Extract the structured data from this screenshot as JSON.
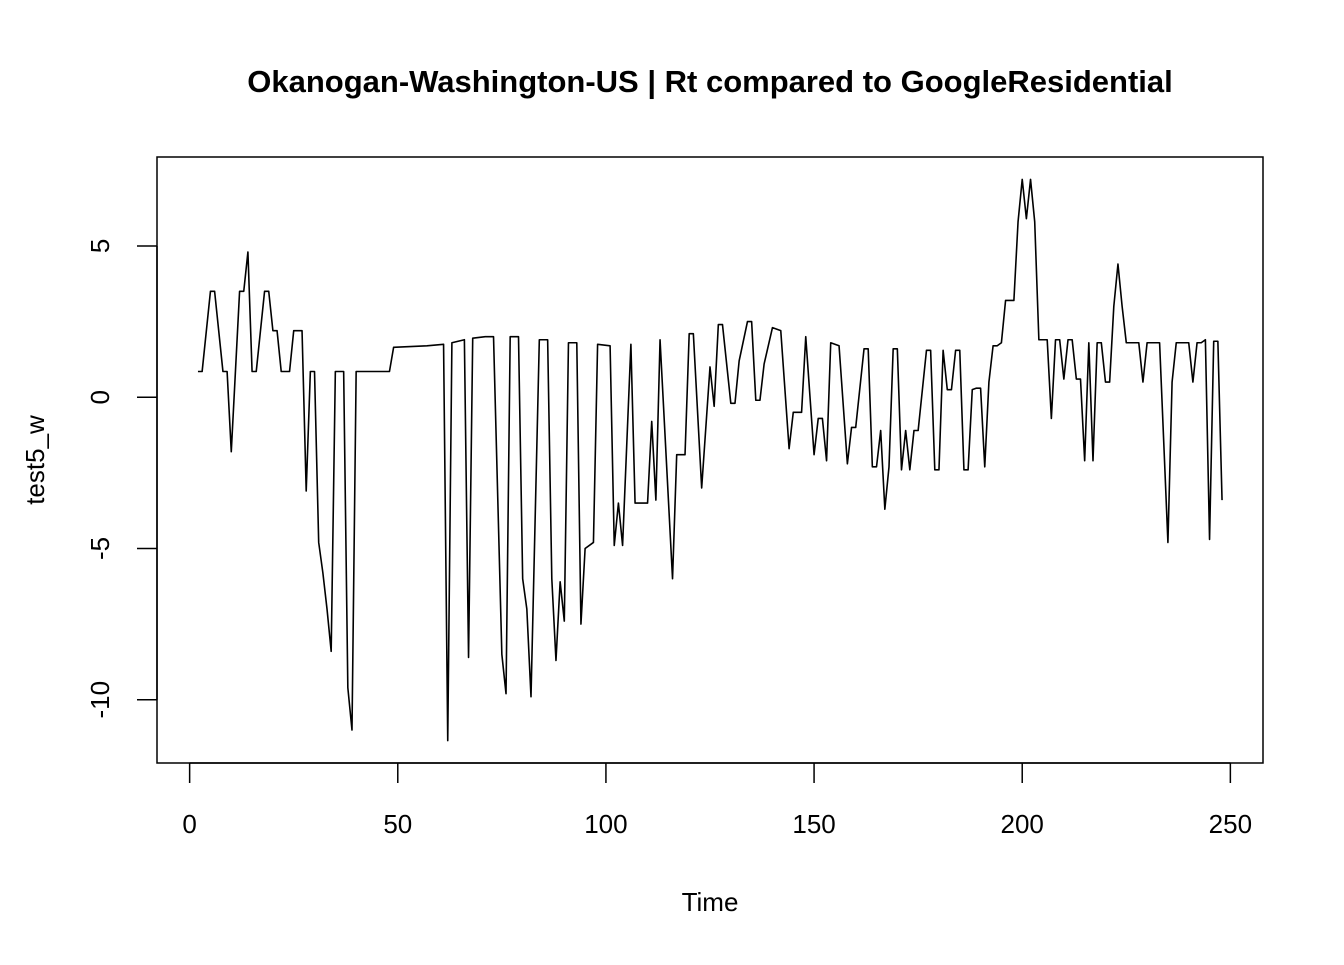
{
  "chart_data": {
    "type": "line",
    "title": "Okanogan-Washington-US | Rt compared to GoogleResidential",
    "x_label": "Time",
    "y_label": "test5_w",
    "x": [
      2,
      3,
      5,
      6,
      8,
      9,
      10,
      12,
      13,
      14,
      15,
      16,
      18,
      19,
      20,
      21,
      22,
      24,
      25,
      27,
      28,
      29,
      30,
      31,
      32,
      33,
      34,
      35,
      37,
      38,
      39,
      40,
      48,
      49,
      57,
      61,
      62,
      63,
      66,
      67,
      68,
      71,
      73,
      75,
      76,
      77,
      79,
      80,
      81,
      82,
      84,
      86,
      87,
      88,
      89,
      90,
      91,
      93,
      94,
      95,
      97,
      98,
      101,
      102,
      103,
      104,
      106,
      107,
      110,
      111,
      112,
      113,
      116,
      117,
      119,
      120,
      121,
      123,
      125,
      126,
      127,
      128,
      130,
      131,
      132,
      134,
      135,
      136,
      137,
      138,
      140,
      142,
      144,
      145,
      147,
      148,
      150,
      151,
      152,
      153,
      154,
      156,
      158,
      159,
      160,
      162,
      163,
      164,
      165,
      166,
      167,
      168,
      169,
      170,
      171,
      172,
      173,
      174,
      175,
      177,
      178,
      179,
      180,
      181,
      182,
      183,
      184,
      185,
      186,
      187,
      188,
      189,
      190,
      191,
      192,
      193,
      194,
      195,
      196,
      197,
      198,
      199,
      200,
      201,
      202,
      203,
      204,
      205,
      206,
      207,
      208,
      209,
      210,
      211,
      212,
      213,
      214,
      215,
      216,
      217,
      218,
      219,
      220,
      221,
      222,
      223,
      224,
      225,
      228,
      229,
      230,
      233,
      234,
      235,
      236,
      237,
      240,
      241,
      242,
      243,
      244,
      245,
      246,
      247,
      248
    ],
    "values": [
      0.85,
      0.85,
      3.5,
      3.5,
      0.85,
      0.85,
      -1.8,
      3.5,
      3.5,
      4.8,
      0.85,
      0.85,
      3.5,
      3.5,
      2.2,
      2.2,
      0.85,
      0.85,
      2.2,
      2.2,
      -3.1,
      0.85,
      0.85,
      -4.8,
      -5.8,
      -7,
      -8.4,
      0.85,
      0.85,
      -9.6,
      -11,
      0.85,
      0.85,
      1.65,
      1.7,
      1.75,
      -11.35,
      1.8,
      1.9,
      -8.6,
      1.95,
      2,
      2,
      -8.5,
      -9.8,
      2,
      2,
      -6,
      -7,
      -9.9,
      1.9,
      1.9,
      -6,
      -8.7,
      -6.1,
      -7.4,
      1.8,
      1.8,
      -7.5,
      -5,
      -4.8,
      1.75,
      1.7,
      -4.9,
      -3.5,
      -4.9,
      1.75,
      -3.5,
      -3.5,
      -0.8,
      -3.4,
      1.9,
      -6,
      -1.9,
      -1.9,
      2.1,
      2.1,
      -3,
      1,
      -0.3,
      2.4,
      2.4,
      -0.2,
      -0.2,
      1.2,
      2.5,
      2.5,
      -0.1,
      -0.1,
      1.1,
      2.3,
      2.2,
      -1.7,
      -0.5,
      -0.5,
      2,
      -1.9,
      -0.7,
      -0.7,
      -2.1,
      1.8,
      1.7,
      -2.2,
      -1,
      -1,
      1.6,
      1.6,
      -2.3,
      -2.3,
      -1.1,
      -3.7,
      -2.3,
      1.6,
      1.6,
      -2.4,
      -1.1,
      -2.4,
      -1.1,
      -1.1,
      1.55,
      1.55,
      -2.4,
      -2.4,
      1.55,
      0.25,
      0.25,
      1.55,
      1.55,
      -2.4,
      -2.4,
      0.25,
      0.3,
      0.3,
      -2.3,
      0.5,
      1.7,
      1.7,
      1.8,
      3.2,
      3.2,
      3.2,
      5.8,
      7.2,
      5.9,
      7.2,
      5.8,
      1.9,
      1.9,
      1.9,
      -0.7,
      1.9,
      1.9,
      0.6,
      1.9,
      1.9,
      0.6,
      0.6,
      -2.1,
      1.8,
      -2.1,
      1.8,
      1.8,
      0.5,
      0.5,
      3,
      4.4,
      3,
      1.8,
      1.8,
      0.5,
      1.8,
      1.8,
      -1.5,
      -4.8,
      0.5,
      1.8,
      1.8,
      0.5,
      1.8,
      1.8,
      1.9,
      -4.7,
      1.85,
      1.85,
      -3.4
    ],
    "color": "#000000",
    "xlim": [
      -7.84,
      257.84
    ],
    "ylim": [
      -12.09,
      7.94
    ],
    "xticks": [
      0,
      50,
      100,
      150,
      200,
      250
    ],
    "yticks": [
      -10,
      -5,
      0,
      5
    ]
  }
}
